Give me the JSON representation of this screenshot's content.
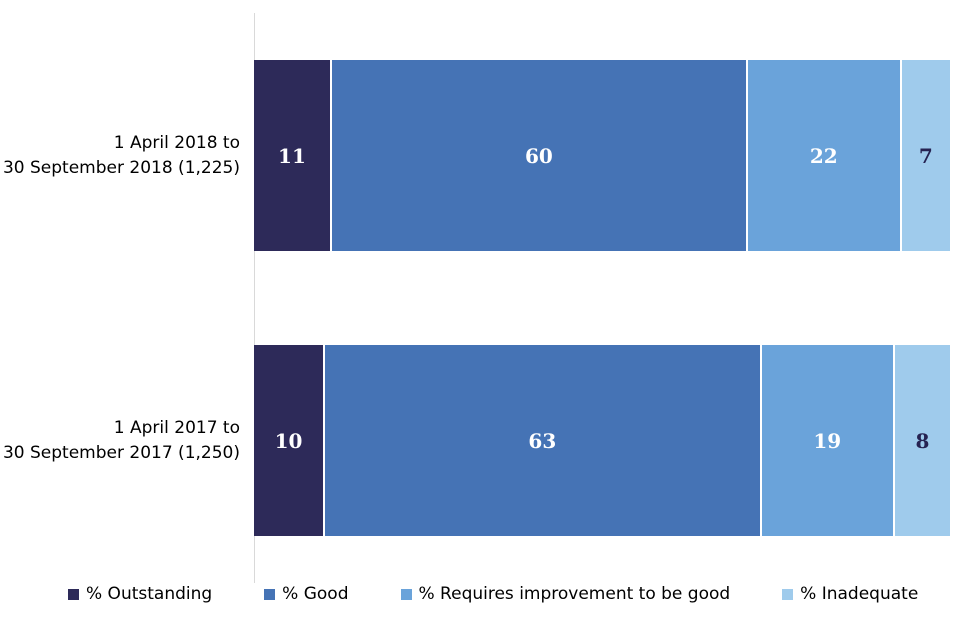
{
  "chart_data": {
    "type": "bar",
    "stacked": true,
    "orientation": "horizontal",
    "title": "",
    "xlim": [
      0,
      100
    ],
    "legend_position": "bottom",
    "axis_line_color": "#d9d9d9",
    "background": "#ffffff",
    "categories": [
      {
        "label_line1": "1 April 2018 to",
        "label_line2": "30 September 2018 (1,225)"
      },
      {
        "label_line1": "1 April 2017 to",
        "label_line2": "30 September 2017 (1,250)"
      }
    ],
    "series": [
      {
        "name": "% Outstanding",
        "color": "#2d2a59",
        "label_color": "#ffffff",
        "values": [
          11,
          10
        ]
      },
      {
        "name": "% Good",
        "color": "#4573b5",
        "label_color": "#ffffff",
        "values": [
          60,
          63
        ]
      },
      {
        "name": "% Requires improvement to be good",
        "color": "#6aa3da",
        "label_color": "#ffffff",
        "values": [
          22,
          19
        ]
      },
      {
        "name": "% Inadequate",
        "color": "#9fcbec",
        "label_color": "#262352",
        "values": [
          7,
          8
        ]
      }
    ]
  }
}
